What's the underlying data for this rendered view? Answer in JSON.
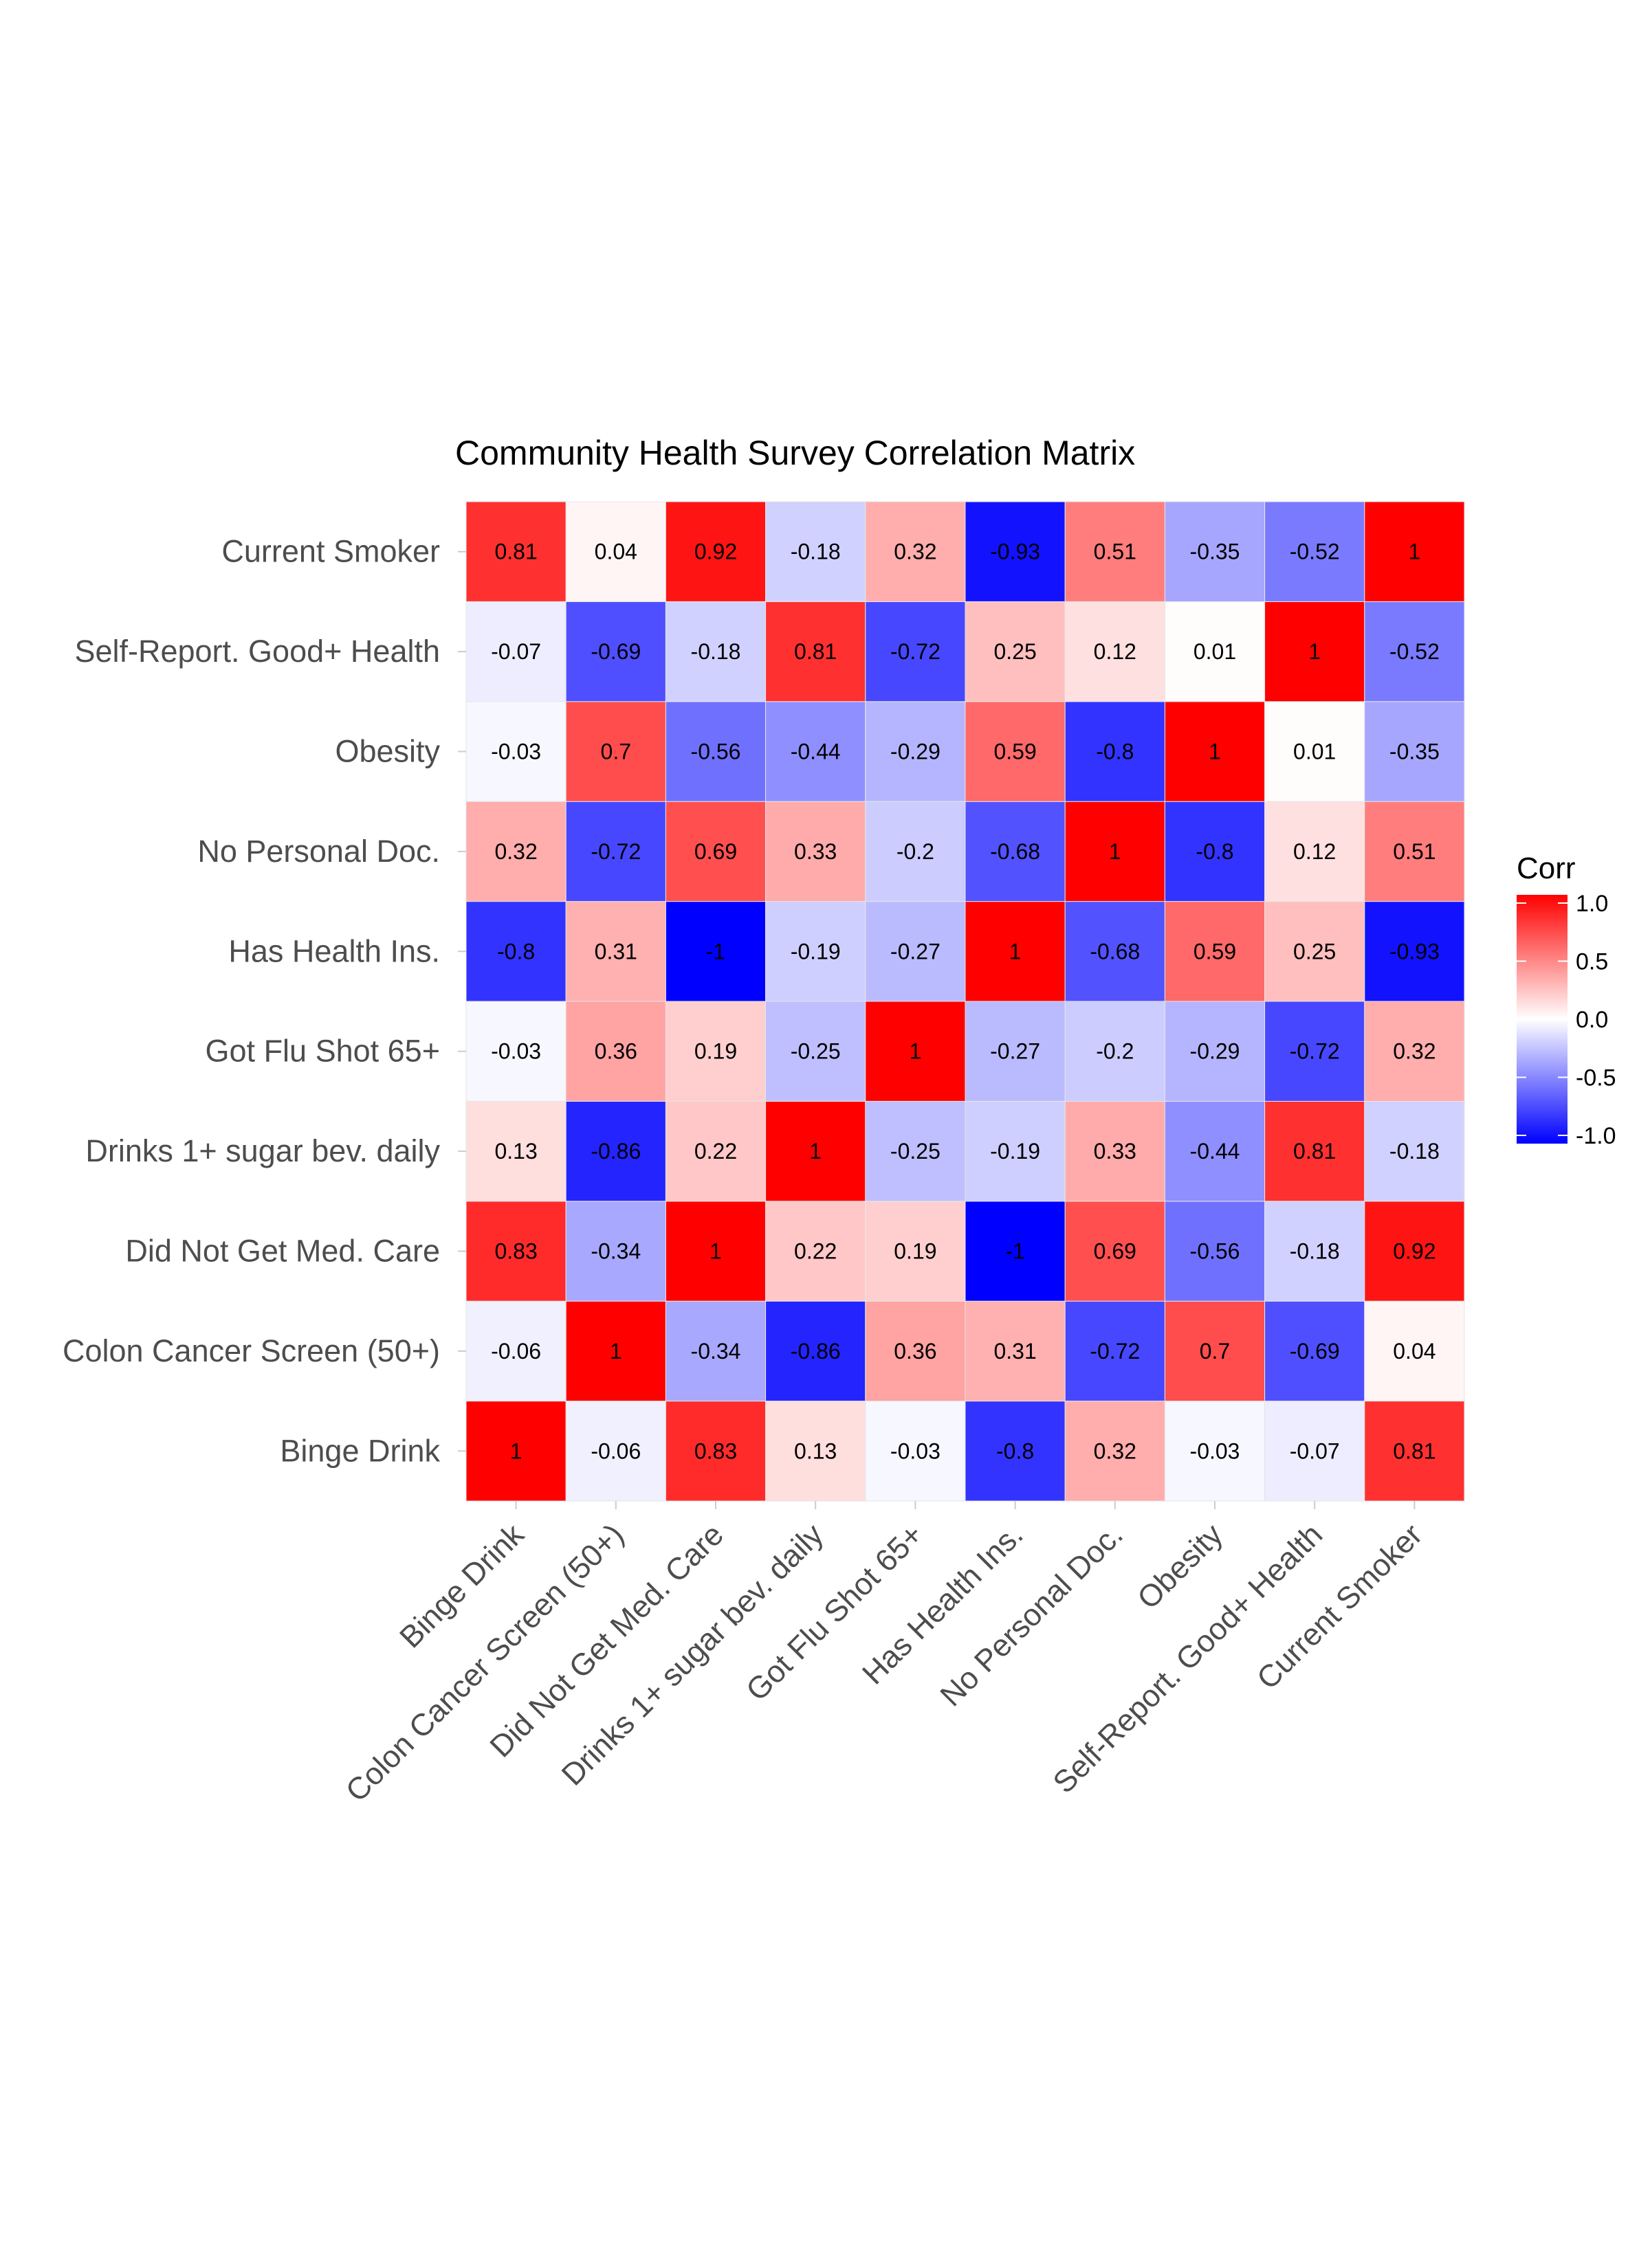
{
  "chart_data": {
    "type": "heatmap",
    "title": "Community Health Survey Correlation Matrix",
    "xlabel": "",
    "ylabel": "",
    "variables": [
      "Binge Drink",
      "Colon Cancer Screen (50+)",
      "Did Not Get Med. Care",
      "Drinks 1+ sugar bev. daily",
      "Got Flu Shot 65+",
      "Has Health Ins.",
      "No Personal Doc.",
      "Obesity",
      "Self-Report. Good+ Health",
      "Current Smoker"
    ],
    "matrix": [
      [
        1,
        -0.06,
        0.83,
        0.13,
        -0.03,
        -0.8,
        0.32,
        -0.03,
        -0.07,
        0.81
      ],
      [
        -0.06,
        1,
        -0.34,
        -0.86,
        0.36,
        0.31,
        -0.72,
        0.7,
        -0.69,
        0.04
      ],
      [
        0.83,
        -0.34,
        1,
        0.22,
        0.19,
        -1,
        0.69,
        -0.56,
        -0.18,
        0.92
      ],
      [
        0.13,
        -0.86,
        0.22,
        1,
        -0.25,
        -0.19,
        0.33,
        -0.44,
        0.81,
        -0.18
      ],
      [
        -0.03,
        0.36,
        0.19,
        -0.25,
        1,
        -0.27,
        -0.2,
        -0.29,
        -0.72,
        0.32
      ],
      [
        -0.8,
        0.31,
        -1,
        -0.19,
        -0.27,
        1,
        -0.68,
        0.59,
        0.25,
        -0.93
      ],
      [
        0.32,
        -0.72,
        0.69,
        0.33,
        -0.2,
        -0.68,
        1,
        -0.8,
        0.12,
        0.51
      ],
      [
        -0.03,
        0.7,
        -0.56,
        -0.44,
        -0.29,
        0.59,
        -0.8,
        1,
        0.01,
        -0.35
      ],
      [
        -0.07,
        -0.69,
        -0.18,
        0.81,
        -0.72,
        0.25,
        0.12,
        0.01,
        1,
        -0.52
      ],
      [
        0.81,
        0.04,
        0.92,
        -0.18,
        0.32,
        -0.93,
        0.51,
        -0.35,
        -0.52,
        1
      ]
    ],
    "color_scale": {
      "low": "#0000ff",
      "mid": "#ffffff",
      "high": "#ff0000",
      "limits": [
        -1,
        1
      ]
    },
    "legend": {
      "title": "Corr",
      "position": "right",
      "ticks": [
        1.0,
        0.5,
        0.0,
        -0.5,
        -1.0
      ],
      "tick_labels": [
        "1.0",
        "0.5",
        "0.0",
        "-0.5",
        "-1.0"
      ]
    },
    "grid": false
  }
}
